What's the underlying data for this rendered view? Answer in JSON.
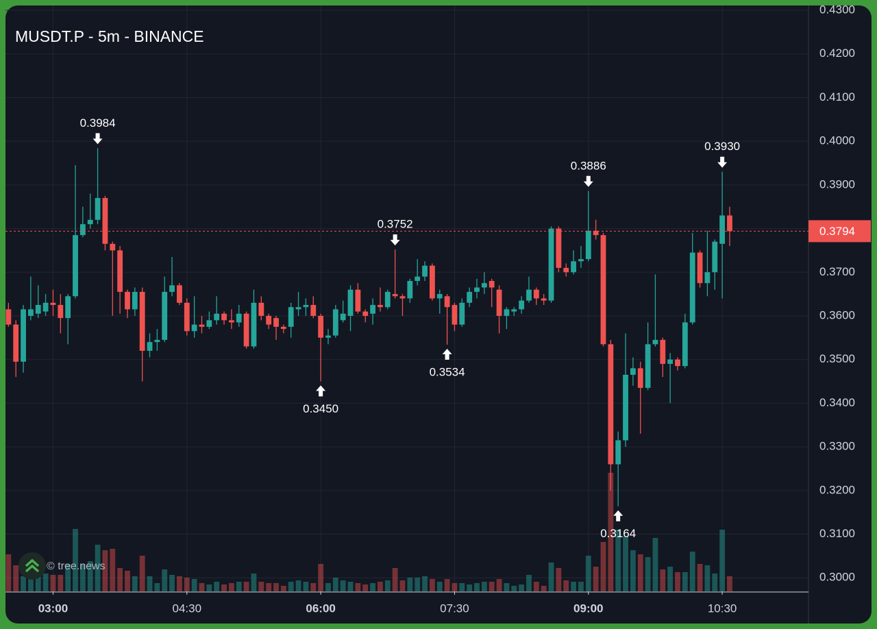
{
  "chart_data": {
    "type": "candlestick",
    "title": "MUSDT.P - 5m - BINANCE",
    "watermark": "© tree.news",
    "x": [
      "02:30",
      "02:35",
      "02:40",
      "02:45",
      "02:50",
      "02:55",
      "03:00",
      "03:05",
      "03:10",
      "03:15",
      "03:20",
      "03:25",
      "03:30",
      "03:35",
      "03:40",
      "03:45",
      "03:50",
      "03:55",
      "04:00",
      "04:05",
      "04:10",
      "04:15",
      "04:20",
      "04:25",
      "04:30",
      "04:35",
      "04:40",
      "04:45",
      "04:50",
      "04:55",
      "05:00",
      "05:05",
      "05:10",
      "05:15",
      "05:20",
      "05:25",
      "05:30",
      "05:35",
      "05:40",
      "05:45",
      "05:50",
      "05:55",
      "06:00",
      "06:05",
      "06:10",
      "06:15",
      "06:20",
      "06:25",
      "06:30",
      "06:35",
      "06:40",
      "06:45",
      "06:50",
      "06:55",
      "07:00",
      "07:05",
      "07:10",
      "07:15",
      "07:20",
      "07:25",
      "07:30",
      "07:35",
      "07:40",
      "07:45",
      "07:50",
      "07:55",
      "08:00",
      "08:05",
      "08:10",
      "08:15",
      "08:20",
      "08:25",
      "08:30",
      "08:35",
      "08:40",
      "08:45",
      "08:50",
      "08:55",
      "09:00",
      "09:05",
      "09:10",
      "09:15",
      "09:20",
      "09:25",
      "09:30",
      "09:35",
      "09:40",
      "09:45",
      "09:50",
      "09:55",
      "10:00",
      "10:05",
      "10:10",
      "10:15",
      "10:20",
      "10:25",
      "10:30",
      "10:35"
    ],
    "open": [
      0.3615,
      0.358,
      0.3495,
      0.36,
      0.3605,
      0.361,
      0.363,
      0.3625,
      0.3595,
      0.3645,
      0.3785,
      0.381,
      0.382,
      0.387,
      0.3765,
      0.375,
      0.3655,
      0.3615,
      0.3655,
      0.352,
      0.354,
      0.3545,
      0.3655,
      0.367,
      0.363,
      0.3565,
      0.358,
      0.3575,
      0.359,
      0.3605,
      0.359,
      0.3585,
      0.3605,
      0.353,
      0.363,
      0.36,
      0.3595,
      0.3575,
      0.3575,
      0.3615,
      0.362,
      0.3625,
      0.36,
      0.355,
      0.3555,
      0.359,
      0.36,
      0.366,
      0.361,
      0.3605,
      0.3625,
      0.362,
      0.365,
      0.3645,
      0.364,
      0.368,
      0.369,
      0.3715,
      0.364,
      0.3645,
      0.3625,
      0.358,
      0.363,
      0.3655,
      0.3665,
      0.368,
      0.366,
      0.36,
      0.361,
      0.3615,
      0.3635,
      0.366,
      0.364,
      0.3635,
      0.38,
      0.371,
      0.37,
      0.3725,
      0.373,
      0.3795,
      0.3785,
      0.3535,
      0.326,
      0.3315,
      0.3465,
      0.348,
      0.3435,
      0.3535,
      0.3545,
      0.349,
      0.35,
      0.3485,
      0.3585,
      0.3745,
      0.3675,
      0.37,
      0.3765,
      0.383
    ],
    "high": [
      0.363,
      0.359,
      0.3625,
      0.369,
      0.367,
      0.365,
      0.366,
      0.365,
      0.365,
      0.3945,
      0.385,
      0.388,
      0.3984,
      0.3875,
      0.377,
      0.376,
      0.366,
      0.3665,
      0.3665,
      0.356,
      0.357,
      0.369,
      0.3735,
      0.3675,
      0.364,
      0.3645,
      0.36,
      0.361,
      0.3645,
      0.361,
      0.3615,
      0.3625,
      0.361,
      0.366,
      0.3645,
      0.3605,
      0.36,
      0.358,
      0.363,
      0.3655,
      0.364,
      0.3645,
      0.3605,
      0.357,
      0.3625,
      0.3635,
      0.367,
      0.3675,
      0.3615,
      0.364,
      0.3665,
      0.366,
      0.3752,
      0.365,
      0.3685,
      0.373,
      0.3725,
      0.372,
      0.366,
      0.365,
      0.363,
      0.364,
      0.3665,
      0.3685,
      0.37,
      0.3685,
      0.367,
      0.362,
      0.362,
      0.3645,
      0.369,
      0.3665,
      0.365,
      0.3805,
      0.3805,
      0.372,
      0.375,
      0.376,
      0.3886,
      0.382,
      0.379,
      0.3545,
      0.3335,
      0.356,
      0.3505,
      0.3495,
      0.3585,
      0.3695,
      0.355,
      0.3515,
      0.3505,
      0.3605,
      0.379,
      0.375,
      0.3795,
      0.3775,
      0.393,
      0.385
    ],
    "low": [
      0.3575,
      0.346,
      0.347,
      0.359,
      0.3595,
      0.36,
      0.36,
      0.356,
      0.3535,
      0.364,
      0.378,
      0.38,
      0.381,
      0.375,
      0.36,
      0.3605,
      0.3595,
      0.36,
      0.345,
      0.3505,
      0.352,
      0.354,
      0.3645,
      0.3625,
      0.3555,
      0.355,
      0.356,
      0.357,
      0.358,
      0.358,
      0.357,
      0.3575,
      0.3525,
      0.3525,
      0.359,
      0.357,
      0.3545,
      0.356,
      0.355,
      0.36,
      0.36,
      0.3595,
      0.345,
      0.3535,
      0.355,
      0.3585,
      0.3565,
      0.3605,
      0.3585,
      0.358,
      0.361,
      0.3615,
      0.364,
      0.36,
      0.363,
      0.367,
      0.368,
      0.3635,
      0.3605,
      0.3534,
      0.3565,
      0.3575,
      0.362,
      0.364,
      0.365,
      0.362,
      0.356,
      0.357,
      0.36,
      0.3605,
      0.363,
      0.3625,
      0.3625,
      0.363,
      0.37,
      0.369,
      0.3695,
      0.371,
      0.3725,
      0.3775,
      0.353,
      0.32,
      0.3164,
      0.33,
      0.344,
      0.333,
      0.343,
      0.353,
      0.346,
      0.34,
      0.3475,
      0.348,
      0.358,
      0.3665,
      0.3645,
      0.366,
      0.364,
      0.376
    ],
    "close": [
      0.358,
      0.3495,
      0.3615,
      0.3615,
      0.3625,
      0.363,
      0.3625,
      0.3595,
      0.3645,
      0.3785,
      0.381,
      0.382,
      0.387,
      0.3765,
      0.375,
      0.3655,
      0.3615,
      0.3655,
      0.352,
      0.354,
      0.3545,
      0.3655,
      0.367,
      0.363,
      0.3565,
      0.358,
      0.3575,
      0.359,
      0.3605,
      0.359,
      0.3585,
      0.3605,
      0.353,
      0.363,
      0.36,
      0.358,
      0.3575,
      0.357,
      0.362,
      0.362,
      0.3625,
      0.36,
      0.355,
      0.3555,
      0.3615,
      0.3605,
      0.366,
      0.361,
      0.36,
      0.3625,
      0.362,
      0.3655,
      0.3645,
      0.364,
      0.368,
      0.369,
      0.3715,
      0.364,
      0.365,
      0.362,
      0.358,
      0.363,
      0.3655,
      0.3665,
      0.3675,
      0.3665,
      0.36,
      0.3615,
      0.3615,
      0.3635,
      0.366,
      0.364,
      0.3635,
      0.38,
      0.371,
      0.37,
      0.3725,
      0.373,
      0.3795,
      0.3785,
      0.3535,
      0.326,
      0.3315,
      0.3465,
      0.348,
      0.3435,
      0.3535,
      0.3545,
      0.349,
      0.35,
      0.3485,
      0.3585,
      0.3745,
      0.3675,
      0.37,
      0.377,
      0.383,
      0.3794
    ],
    "volume": [
      54,
      38,
      22,
      30,
      22,
      26,
      24,
      24,
      40,
      91,
      40,
      44,
      68,
      60,
      62,
      34,
      30,
      22,
      52,
      22,
      12,
      32,
      24,
      22,
      20,
      18,
      12,
      10,
      14,
      10,
      12,
      14,
      14,
      26,
      14,
      12,
      12,
      8,
      14,
      16,
      14,
      12,
      40,
      12,
      20,
      16,
      14,
      12,
      10,
      12,
      14,
      16,
      34,
      16,
      20,
      20,
      22,
      18,
      14,
      18,
      12,
      12,
      10,
      12,
      14,
      14,
      18,
      12,
      8,
      10,
      24,
      14,
      8,
      42,
      34,
      16,
      14,
      14,
      52,
      36,
      72,
      173,
      90,
      80,
      60,
      54,
      50,
      78,
      32,
      36,
      28,
      28,
      58,
      40,
      38,
      26,
      90,
      22
    ],
    "up_color": "#26a69a",
    "down_color": "#ef5350",
    "xlim": [
      "02:28",
      "11:28"
    ],
    "xticks": [
      "03:00",
      "04:30",
      "06:00",
      "07:30",
      "09:00",
      "10:30"
    ],
    "ylim": [
      0.2969,
      0.4311
    ],
    "yticks": [
      {
        "value": 0.3,
        "label": "0.3000"
      },
      {
        "value": 0.31,
        "label": "0.3100"
      },
      {
        "value": 0.32,
        "label": "0.3200"
      },
      {
        "value": 0.33,
        "label": "0.3300"
      },
      {
        "value": 0.34,
        "label": "0.3400"
      },
      {
        "value": 0.35,
        "label": "0.3500"
      },
      {
        "value": 0.36,
        "label": "0.3600"
      },
      {
        "value": 0.37,
        "label": "0.3700"
      },
      {
        "value": 0.38,
        "label": "0.3800"
      },
      {
        "value": 0.39,
        "label": "0.3900"
      },
      {
        "value": 0.4,
        "label": "0.4000"
      },
      {
        "value": 0.41,
        "label": "0.4100"
      },
      {
        "value": 0.42,
        "label": "0.4200"
      },
      {
        "value": 0.43,
        "label": "0.4300"
      }
    ],
    "grid": true,
    "last_price": {
      "value": 0.3794,
      "label": "0.3794"
    },
    "annotations": [
      {
        "x": "03:30",
        "value": 0.3984,
        "label": "0.3984",
        "position": "above"
      },
      {
        "x": "06:00",
        "value": 0.345,
        "label": "0.3450",
        "position": "below"
      },
      {
        "x": "06:50",
        "value": 0.3752,
        "label": "0.3752",
        "position": "above"
      },
      {
        "x": "07:25",
        "value": 0.3534,
        "label": "0.3534",
        "position": "below"
      },
      {
        "x": "09:00",
        "value": 0.3886,
        "label": "0.3886",
        "position": "above"
      },
      {
        "x": "09:20",
        "value": 0.3164,
        "label": "0.3164",
        "position": "below"
      },
      {
        "x": "10:30",
        "value": 0.393,
        "label": "0.3930",
        "position": "above"
      }
    ]
  }
}
